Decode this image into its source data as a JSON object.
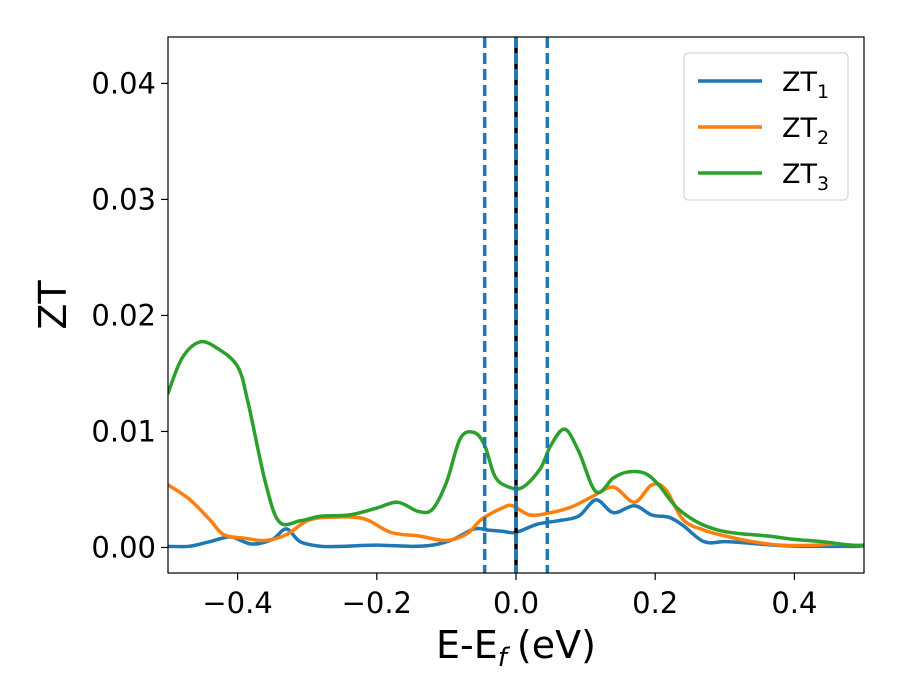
{
  "chart_data": {
    "type": "line",
    "xlabel": "E-E",
    "xlabel_sub": "f",
    "xlabel_unit": "(eV)",
    "ylabel": "ZT",
    "xlim": [
      -0.5,
      0.5
    ],
    "ylim": [
      -0.0022,
      0.044
    ],
    "x_ticks": [
      -0.4,
      -0.2,
      0.0,
      0.2,
      0.4
    ],
    "x_tick_labels": [
      "−0.4",
      "−0.2",
      "0.0",
      "0.2",
      "0.4"
    ],
    "y_ticks": [
      0.0,
      0.01,
      0.02,
      0.03,
      0.04
    ],
    "y_tick_labels": [
      "0.00",
      "0.01",
      "0.02",
      "0.03",
      "0.04"
    ],
    "grid": false,
    "legend_position": "top-right",
    "vlines": [
      {
        "x": -0.045,
        "color": "#1f77b4",
        "style": "dashed"
      },
      {
        "x": 0.0,
        "color": "#000000",
        "style": "solid"
      },
      {
        "x": 0.0,
        "color": "#1f77b4",
        "style": "dashed"
      },
      {
        "x": 0.045,
        "color": "#1f77b4",
        "style": "dashed"
      }
    ],
    "series": [
      {
        "name": "ZT",
        "sub": "1",
        "color": "#1f77b4",
        "points": [
          [
            -0.5,
            0.0001
          ],
          [
            -0.47,
            0.0001
          ],
          [
            -0.44,
            0.0005
          ],
          [
            -0.41,
            0.0009
          ],
          [
            -0.38,
            0.0003
          ],
          [
            -0.35,
            0.0007
          ],
          [
            -0.33,
            0.0016
          ],
          [
            -0.31,
            0.0005
          ],
          [
            -0.28,
            0.0001
          ],
          [
            -0.25,
            0.0001
          ],
          [
            -0.2,
            0.0002
          ],
          [
            -0.15,
            0.0001
          ],
          [
            -0.12,
            0.0002
          ],
          [
            -0.09,
            0.0007
          ],
          [
            -0.06,
            0.0016
          ],
          [
            -0.04,
            0.0015
          ],
          [
            -0.02,
            0.0014
          ],
          [
            0.0,
            0.0013
          ],
          [
            0.03,
            0.002
          ],
          [
            0.06,
            0.0023
          ],
          [
            0.09,
            0.0027
          ],
          [
            0.115,
            0.0041
          ],
          [
            0.14,
            0.003
          ],
          [
            0.17,
            0.0036
          ],
          [
            0.195,
            0.0028
          ],
          [
            0.22,
            0.0026
          ],
          [
            0.24,
            0.0019
          ],
          [
            0.27,
            0.0005
          ],
          [
            0.3,
            0.0005
          ],
          [
            0.33,
            0.0004
          ],
          [
            0.37,
            0.0002
          ],
          [
            0.41,
            0.0001
          ],
          [
            0.45,
            0.0001
          ],
          [
            0.5,
            0.0001
          ]
        ]
      },
      {
        "name": "ZT",
        "sub": "2",
        "color": "#ff7f0e",
        "points": [
          [
            -0.5,
            0.0054
          ],
          [
            -0.47,
            0.0042
          ],
          [
            -0.44,
            0.0024
          ],
          [
            -0.42,
            0.0011
          ],
          [
            -0.39,
            0.0008
          ],
          [
            -0.36,
            0.0006
          ],
          [
            -0.33,
            0.0011
          ],
          [
            -0.3,
            0.0023
          ],
          [
            -0.27,
            0.0026
          ],
          [
            -0.22,
            0.0025
          ],
          [
            -0.18,
            0.0013
          ],
          [
            -0.14,
            0.001
          ],
          [
            -0.1,
            0.0006
          ],
          [
            -0.07,
            0.0012
          ],
          [
            -0.05,
            0.0024
          ],
          [
            -0.02,
            0.0034
          ],
          [
            -0.005,
            0.0036
          ],
          [
            0.02,
            0.0028
          ],
          [
            0.05,
            0.003
          ],
          [
            0.08,
            0.0035
          ],
          [
            0.11,
            0.0044
          ],
          [
            0.14,
            0.0052
          ],
          [
            0.17,
            0.0039
          ],
          [
            0.195,
            0.0054
          ],
          [
            0.215,
            0.005
          ],
          [
            0.24,
            0.0024
          ],
          [
            0.27,
            0.0015
          ],
          [
            0.3,
            0.001
          ],
          [
            0.34,
            0.0005
          ],
          [
            0.38,
            0.0002
          ],
          [
            0.43,
            0.0002
          ],
          [
            0.46,
            0.0003
          ],
          [
            0.5,
            0.0001
          ]
        ]
      },
      {
        "name": "ZT",
        "sub": "3",
        "color": "#2ca02c",
        "points": [
          [
            -0.5,
            0.0133
          ],
          [
            -0.48,
            0.0163
          ],
          [
            -0.455,
            0.0177
          ],
          [
            -0.43,
            0.0172
          ],
          [
            -0.4,
            0.0156
          ],
          [
            -0.385,
            0.0125
          ],
          [
            -0.36,
            0.0056
          ],
          [
            -0.34,
            0.0022
          ],
          [
            -0.31,
            0.0023
          ],
          [
            -0.28,
            0.0027
          ],
          [
            -0.24,
            0.0028
          ],
          [
            -0.2,
            0.0034
          ],
          [
            -0.17,
            0.0039
          ],
          [
            -0.14,
            0.0031
          ],
          [
            -0.12,
            0.0033
          ],
          [
            -0.1,
            0.0056
          ],
          [
            -0.08,
            0.0094
          ],
          [
            -0.06,
            0.0099
          ],
          [
            -0.045,
            0.0088
          ],
          [
            -0.03,
            0.0061
          ],
          [
            -0.01,
            0.0052
          ],
          [
            0.01,
            0.0052
          ],
          [
            0.035,
            0.0068
          ],
          [
            0.05,
            0.0088
          ],
          [
            0.07,
            0.0102
          ],
          [
            0.09,
            0.0083
          ],
          [
            0.115,
            0.0048
          ],
          [
            0.14,
            0.006
          ],
          [
            0.16,
            0.0065
          ],
          [
            0.185,
            0.0064
          ],
          [
            0.205,
            0.0054
          ],
          [
            0.23,
            0.0035
          ],
          [
            0.26,
            0.0022
          ],
          [
            0.29,
            0.0015
          ],
          [
            0.32,
            0.0012
          ],
          [
            0.36,
            0.001
          ],
          [
            0.4,
            0.0007
          ],
          [
            0.44,
            0.0005
          ],
          [
            0.48,
            0.0002
          ],
          [
            0.5,
            0.0002
          ]
        ]
      }
    ]
  }
}
